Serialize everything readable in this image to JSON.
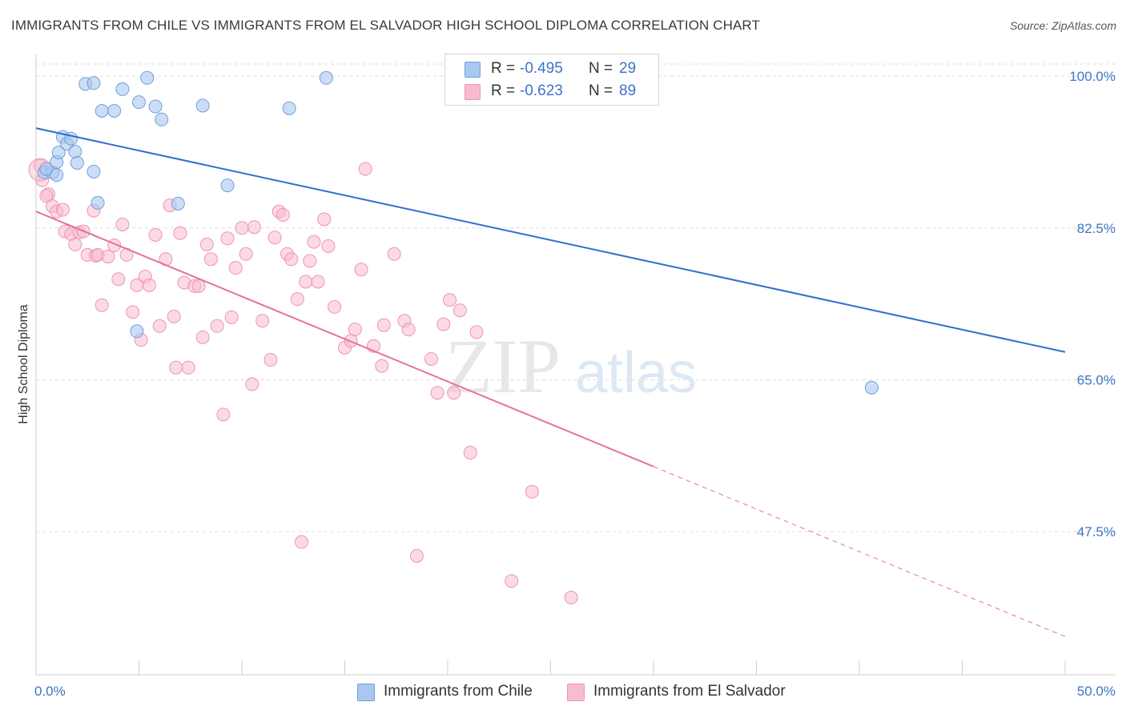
{
  "title": "IMMIGRANTS FROM CHILE VS IMMIGRANTS FROM EL SALVADOR HIGH SCHOOL DIPLOMA CORRELATION CHART",
  "source": "Source: ZipAtlas.com",
  "colors": {
    "chile_fill": "#a9c8f0",
    "chile_stroke": "#6f9fdb",
    "chile_line": "#2f6fc8",
    "elsal_fill": "#f7bccf",
    "elsal_stroke": "#ef93b2",
    "elsal_line": "#e5729a",
    "tick_text": "#3d74c7",
    "grid": "#dddddd"
  },
  "legend_top": {
    "rows": [
      {
        "r_label": "R = ",
        "r_value": "-0.495",
        "n_label": "N = ",
        "n_value": "29"
      },
      {
        "r_label": "R = ",
        "r_value": "-0.623",
        "n_label": "N = ",
        "n_value": "89"
      }
    ]
  },
  "legend_bottom": {
    "chile": "Immigrants from Chile",
    "elsalvador": "Immigrants from El Salvador"
  },
  "watermark": {
    "zip": "ZIP",
    "atlas": "atlas"
  },
  "chart_data": {
    "type": "scatter",
    "title": "IMMIGRANTS FROM CHILE VS IMMIGRANTS FROM EL SALVADOR HIGH SCHOOL DIPLOMA CORRELATION CHART",
    "xlabel": "",
    "ylabel": "High School Diploma",
    "xlim": [
      0,
      50
    ],
    "ylim": [
      31,
      102.5
    ],
    "x_tick_labels": [
      "0.0%",
      "50.0%"
    ],
    "y_ticks": [
      100.0,
      82.5,
      65.0,
      47.5
    ],
    "y_tick_labels": [
      "100.0%",
      "82.5%",
      "65.0%",
      "47.5%"
    ],
    "grid": true,
    "legend_position": "top-center",
    "series": [
      {
        "name": "Immigrants from Chile",
        "color": "#a9c8f0",
        "R": -0.495,
        "N": 29,
        "trend": {
          "x": [
            0,
            50
          ],
          "y": [
            94.0,
            68.2
          ]
        },
        "points": [
          [
            0.4,
            88.9
          ],
          [
            0.8,
            88.9
          ],
          [
            1.0,
            90.1
          ],
          [
            1.1,
            91.2
          ],
          [
            1.3,
            93.0
          ],
          [
            1.5,
            92.2
          ],
          [
            1.7,
            92.8
          ],
          [
            1.9,
            91.3
          ],
          [
            2.0,
            90.0
          ],
          [
            2.4,
            99.1
          ],
          [
            2.8,
            89.0
          ],
          [
            3.0,
            85.4
          ],
          [
            3.2,
            96.0
          ],
          [
            3.8,
            96.0
          ],
          [
            4.2,
            98.5
          ],
          [
            4.9,
            70.6
          ],
          [
            5.0,
            97.0
          ],
          [
            5.4,
            99.8
          ],
          [
            5.8,
            96.5
          ],
          [
            6.1,
            95.0
          ],
          [
            6.9,
            85.3
          ],
          [
            8.1,
            96.6
          ],
          [
            9.3,
            87.4
          ],
          [
            12.3,
            96.3
          ],
          [
            14.1,
            99.8
          ],
          [
            40.6,
            64.1
          ],
          [
            2.8,
            99.2
          ],
          [
            1.0,
            88.6
          ],
          [
            0.5,
            89.3
          ]
        ]
      },
      {
        "name": "Immigrants from El Salvador",
        "color": "#f7bccf",
        "R": -0.623,
        "N": 89,
        "trend": {
          "x": [
            0,
            30.0
          ],
          "y": [
            84.4,
            55.0
          ]
        },
        "trend_dashed": {
          "x": [
            30.0,
            50
          ],
          "y": [
            55.0,
            35.4
          ]
        },
        "points": [
          [
            0.2,
            89.7
          ],
          [
            0.3,
            88.0
          ],
          [
            0.6,
            86.4
          ],
          [
            0.8,
            85.0
          ],
          [
            1.0,
            84.4
          ],
          [
            1.3,
            84.6
          ],
          [
            1.4,
            82.1
          ],
          [
            1.7,
            81.8
          ],
          [
            1.9,
            80.6
          ],
          [
            2.1,
            82.0
          ],
          [
            2.3,
            82.1
          ],
          [
            2.5,
            79.4
          ],
          [
            2.8,
            84.5
          ],
          [
            2.9,
            79.3
          ],
          [
            3.0,
            79.4
          ],
          [
            3.2,
            73.6
          ],
          [
            3.5,
            79.2
          ],
          [
            3.8,
            80.5
          ],
          [
            4.0,
            76.6
          ],
          [
            4.2,
            82.9
          ],
          [
            4.4,
            79.4
          ],
          [
            4.7,
            72.8
          ],
          [
            4.9,
            75.9
          ],
          [
            5.1,
            69.6
          ],
          [
            5.3,
            76.9
          ],
          [
            5.5,
            75.9
          ],
          [
            5.8,
            81.7
          ],
          [
            6.0,
            71.2
          ],
          [
            6.3,
            78.9
          ],
          [
            6.5,
            85.1
          ],
          [
            6.7,
            72.3
          ],
          [
            6.8,
            66.4
          ],
          [
            7.0,
            81.9
          ],
          [
            7.2,
            76.2
          ],
          [
            7.4,
            66.4
          ],
          [
            7.7,
            75.8
          ],
          [
            7.9,
            75.8
          ],
          [
            8.1,
            69.9
          ],
          [
            8.3,
            80.6
          ],
          [
            8.5,
            78.9
          ],
          [
            8.8,
            71.2
          ],
          [
            9.1,
            61.0
          ],
          [
            9.3,
            81.3
          ],
          [
            9.5,
            72.2
          ],
          [
            9.7,
            77.9
          ],
          [
            10.0,
            82.5
          ],
          [
            10.2,
            79.5
          ],
          [
            10.5,
            64.5
          ],
          [
            10.6,
            82.6
          ],
          [
            11.0,
            71.8
          ],
          [
            11.4,
            67.3
          ],
          [
            11.6,
            81.4
          ],
          [
            11.8,
            84.4
          ],
          [
            12.0,
            84.0
          ],
          [
            12.2,
            79.5
          ],
          [
            12.4,
            78.9
          ],
          [
            12.7,
            74.3
          ],
          [
            12.9,
            46.3
          ],
          [
            13.1,
            76.3
          ],
          [
            13.3,
            78.7
          ],
          [
            13.5,
            80.9
          ],
          [
            13.7,
            76.3
          ],
          [
            14.0,
            83.5
          ],
          [
            14.2,
            80.4
          ],
          [
            14.5,
            73.4
          ],
          [
            15.0,
            68.7
          ],
          [
            15.3,
            69.5
          ],
          [
            15.5,
            70.8
          ],
          [
            15.8,
            77.7
          ],
          [
            16.0,
            89.3
          ],
          [
            16.4,
            68.9
          ],
          [
            16.8,
            66.6
          ],
          [
            16.9,
            71.3
          ],
          [
            17.4,
            79.5
          ],
          [
            17.9,
            71.8
          ],
          [
            18.1,
            70.8
          ],
          [
            18.5,
            44.7
          ],
          [
            19.2,
            67.4
          ],
          [
            19.5,
            63.5
          ],
          [
            19.8,
            71.4
          ],
          [
            20.1,
            74.2
          ],
          [
            20.3,
            63.5
          ],
          [
            20.6,
            73.0
          ],
          [
            21.1,
            56.6
          ],
          [
            21.4,
            70.5
          ],
          [
            23.1,
            41.8
          ],
          [
            24.1,
            52.1
          ],
          [
            26.0,
            39.9
          ],
          [
            0.5,
            86.2
          ]
        ]
      }
    ]
  }
}
